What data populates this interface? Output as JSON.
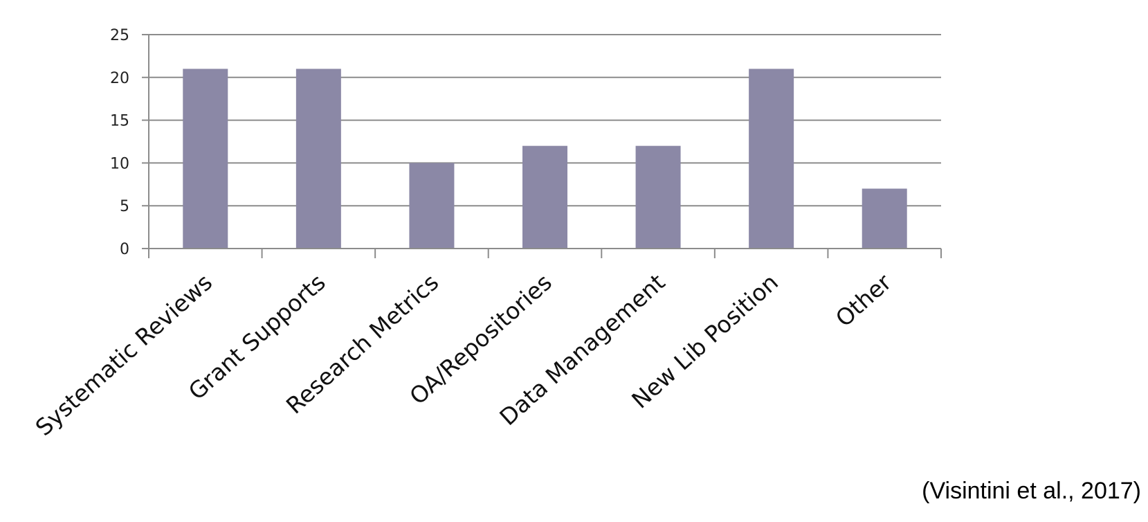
{
  "chart_data": {
    "type": "bar",
    "categories": [
      "Systematic Reviews",
      "Grant Supports",
      "Research Metrics",
      "OA/Repositories",
      "Data Management",
      "New Lib Position",
      "Other"
    ],
    "values": [
      21,
      21,
      10,
      12,
      12,
      21,
      7
    ],
    "title": "",
    "xlabel": "",
    "ylabel": "",
    "ylim": [
      0,
      25
    ],
    "yticks": [
      0,
      5,
      10,
      15,
      20,
      25
    ],
    "grid": true,
    "legend": "none",
    "bar_color": "#8b88a6",
    "grid_color": "#8c8c8c"
  },
  "citation": "(Visintini et al., 2017)"
}
